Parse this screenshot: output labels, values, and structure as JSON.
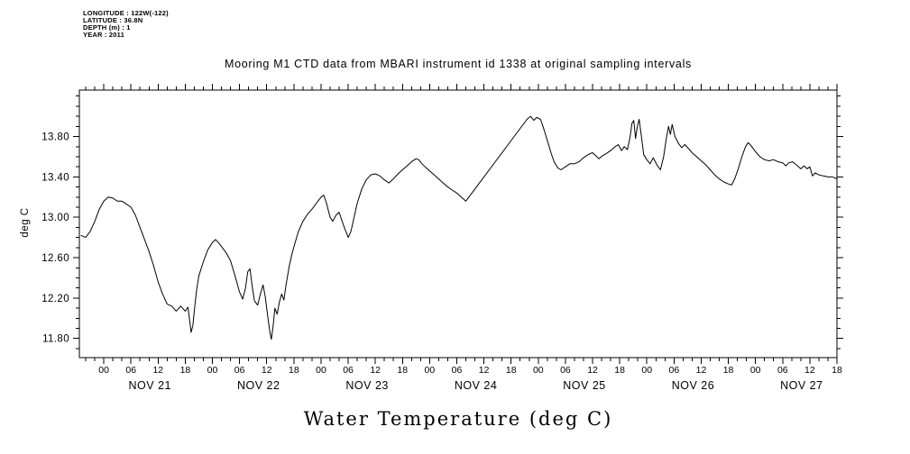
{
  "meta": {
    "lines": [
      "LONGITUDE : 122W(-122)",
      "LATITUDE : 36.8N",
      "DEPTH (m) : 1",
      "YEAR : 2011"
    ]
  },
  "title": "Mooring M1 CTD data from MBARI instrument id 1338 at original sampling intervals",
  "bottom_title": "Water Temperature (deg C)",
  "chart_data": {
    "type": "line",
    "title": "Mooring M1 CTD data from MBARI instrument id 1338 at original sampling intervals",
    "xlabel": "Water Temperature (deg C)",
    "ylabel": "deg C",
    "line_color": "#000000",
    "background": "#ffffff",
    "grid": false,
    "legend": false,
    "ylim": [
      11.61,
      14.26
    ],
    "ytick_values": [
      11.8,
      12.2,
      12.6,
      13.0,
      13.4,
      13.8
    ],
    "ytick_labels": [
      "11.80",
      "12.20",
      "12.60",
      "13.00",
      "13.40",
      "13.80"
    ],
    "y_minor_step": 0.1,
    "x_unit": "hours since 2011-11-20 18:00",
    "xlim": [
      0.6,
      168
    ],
    "x_major_step_hours": 6,
    "x_minor_step_hours": 2,
    "hour_labels_cycle": [
      "00",
      "06",
      "12",
      "18"
    ],
    "day_labels": [
      "NOV 21",
      "NOV 22",
      "NOV 23",
      "NOV 24",
      "NOV 25",
      "NOV 26",
      "NOV 27"
    ],
    "series": [
      {
        "name": "water_temperature",
        "units": "deg C",
        "points": [
          [
            1,
            12.82
          ],
          [
            2,
            12.8
          ],
          [
            3,
            12.86
          ],
          [
            4,
            12.96
          ],
          [
            5,
            13.08
          ],
          [
            6,
            13.16
          ],
          [
            7,
            13.2
          ],
          [
            8,
            13.19
          ],
          [
            9,
            13.16
          ],
          [
            10,
            13.16
          ],
          [
            11,
            13.13
          ],
          [
            12,
            13.1
          ],
          [
            13,
            13.02
          ],
          [
            14,
            12.9
          ],
          [
            15,
            12.78
          ],
          [
            16,
            12.66
          ],
          [
            17,
            12.52
          ],
          [
            18,
            12.36
          ],
          [
            19,
            12.24
          ],
          [
            20,
            12.14
          ],
          [
            21,
            12.12
          ],
          [
            22,
            12.07
          ],
          [
            23,
            12.12
          ],
          [
            24,
            12.07
          ],
          [
            24.6,
            12.11
          ],
          [
            25,
            11.97
          ],
          [
            25.3,
            11.86
          ],
          [
            25.7,
            11.93
          ],
          [
            26,
            12.08
          ],
          [
            26.5,
            12.28
          ],
          [
            27,
            12.42
          ],
          [
            28,
            12.56
          ],
          [
            29,
            12.68
          ],
          [
            30,
            12.75
          ],
          [
            30.7,
            12.78
          ],
          [
            31.5,
            12.74
          ],
          [
            32,
            12.71
          ],
          [
            33,
            12.65
          ],
          [
            34,
            12.57
          ],
          [
            35,
            12.42
          ],
          [
            36,
            12.26
          ],
          [
            36.7,
            12.19
          ],
          [
            37.3,
            12.3
          ],
          [
            37.8,
            12.46
          ],
          [
            38.3,
            12.49
          ],
          [
            38.8,
            12.31
          ],
          [
            39.3,
            12.17
          ],
          [
            40,
            12.13
          ],
          [
            40.6,
            12.24
          ],
          [
            41.2,
            12.33
          ],
          [
            41.7,
            12.21
          ],
          [
            42.2,
            12.03
          ],
          [
            42.7,
            11.86
          ],
          [
            43,
            11.79
          ],
          [
            43.4,
            11.92
          ],
          [
            43.8,
            12.1
          ],
          [
            44.3,
            12.04
          ],
          [
            44.8,
            12.16
          ],
          [
            45.3,
            12.24
          ],
          [
            45.8,
            12.18
          ],
          [
            46.3,
            12.34
          ],
          [
            47,
            12.52
          ],
          [
            47.6,
            12.64
          ],
          [
            48.2,
            12.74
          ],
          [
            49,
            12.86
          ],
          [
            50,
            12.96
          ],
          [
            51,
            13.03
          ],
          [
            52,
            13.08
          ],
          [
            53,
            13.14
          ],
          [
            54,
            13.2
          ],
          [
            54.6,
            13.22
          ],
          [
            55.2,
            13.14
          ],
          [
            56,
            13.0
          ],
          [
            56.6,
            12.96
          ],
          [
            57.3,
            13.02
          ],
          [
            58,
            13.05
          ],
          [
            58.6,
            12.97
          ],
          [
            59.3,
            12.88
          ],
          [
            60,
            12.8
          ],
          [
            60.6,
            12.86
          ],
          [
            61.3,
            13.0
          ],
          [
            62,
            13.14
          ],
          [
            63,
            13.28
          ],
          [
            64,
            13.37
          ],
          [
            65,
            13.42
          ],
          [
            66,
            13.43
          ],
          [
            67,
            13.41
          ],
          [
            68,
            13.37
          ],
          [
            69,
            13.34
          ],
          [
            70,
            13.38
          ],
          [
            71,
            13.43
          ],
          [
            72,
            13.47
          ],
          [
            73,
            13.51
          ],
          [
            74,
            13.55
          ],
          [
            75,
            13.58
          ],
          [
            75.6,
            13.57
          ],
          [
            76.3,
            13.53
          ],
          [
            77,
            13.5
          ],
          [
            78,
            13.46
          ],
          [
            79,
            13.42
          ],
          [
            80,
            13.38
          ],
          [
            81,
            13.34
          ],
          [
            82,
            13.3
          ],
          [
            83,
            13.27
          ],
          [
            84,
            13.24
          ],
          [
            85,
            13.2
          ],
          [
            86,
            13.16
          ],
          [
            99.5,
            13.97
          ],
          [
            100.3,
            14.0
          ],
          [
            101,
            13.96
          ],
          [
            101.7,
            13.99
          ],
          [
            102.5,
            13.97
          ],
          [
            103.2,
            13.88
          ],
          [
            104,
            13.76
          ],
          [
            104.8,
            13.64
          ],
          [
            105.5,
            13.55
          ],
          [
            106.3,
            13.49
          ],
          [
            107,
            13.47
          ],
          [
            108,
            13.5
          ],
          [
            109,
            13.53
          ],
          [
            110,
            13.53
          ],
          [
            111,
            13.55
          ],
          [
            112,
            13.59
          ],
          [
            113,
            13.62
          ],
          [
            114,
            13.64
          ],
          [
            114.7,
            13.61
          ],
          [
            115.4,
            13.58
          ],
          [
            116.2,
            13.61
          ],
          [
            117,
            13.63
          ],
          [
            118,
            13.66
          ],
          [
            119,
            13.7
          ],
          [
            119.7,
            13.72
          ],
          [
            120.4,
            13.66
          ],
          [
            121,
            13.7
          ],
          [
            121.7,
            13.67
          ],
          [
            122.3,
            13.8
          ],
          [
            122.7,
            13.93
          ],
          [
            123.1,
            13.96
          ],
          [
            123.5,
            13.78
          ],
          [
            123.9,
            13.9
          ],
          [
            124.3,
            13.97
          ],
          [
            124.8,
            13.8
          ],
          [
            125.3,
            13.62
          ],
          [
            126,
            13.57
          ],
          [
            126.7,
            13.53
          ],
          [
            127.4,
            13.59
          ],
          [
            128.2,
            13.52
          ],
          [
            129,
            13.47
          ],
          [
            129.7,
            13.6
          ],
          [
            130.3,
            13.78
          ],
          [
            130.8,
            13.9
          ],
          [
            131.2,
            13.82
          ],
          [
            131.6,
            13.92
          ],
          [
            132.2,
            13.8
          ],
          [
            133,
            13.73
          ],
          [
            133.7,
            13.69
          ],
          [
            134.4,
            13.72
          ],
          [
            135.2,
            13.68
          ],
          [
            136,
            13.64
          ],
          [
            137,
            13.6
          ],
          [
            138,
            13.56
          ],
          [
            139,
            13.52
          ],
          [
            140,
            13.47
          ],
          [
            141,
            13.42
          ],
          [
            142,
            13.38
          ],
          [
            143,
            13.35
          ],
          [
            144,
            13.33
          ],
          [
            144.7,
            13.32
          ],
          [
            145.4,
            13.38
          ],
          [
            146.2,
            13.48
          ],
          [
            147,
            13.6
          ],
          [
            147.8,
            13.7
          ],
          [
            148.4,
            13.74
          ],
          [
            149,
            13.71
          ],
          [
            150,
            13.65
          ],
          [
            151,
            13.6
          ],
          [
            152,
            13.57
          ],
          [
            153,
            13.56
          ],
          [
            154,
            13.57
          ],
          [
            155,
            13.55
          ],
          [
            156,
            13.54
          ],
          [
            156.7,
            13.51
          ],
          [
            157.4,
            13.54
          ],
          [
            158.2,
            13.55
          ],
          [
            159,
            13.52
          ],
          [
            160,
            13.48
          ],
          [
            160.7,
            13.51
          ],
          [
            161.4,
            13.48
          ],
          [
            162,
            13.5
          ],
          [
            162.6,
            13.41
          ],
          [
            163.2,
            13.44
          ],
          [
            164,
            13.42
          ],
          [
            165,
            13.41
          ],
          [
            166,
            13.4
          ],
          [
            167,
            13.4
          ],
          [
            168,
            13.38
          ]
        ]
      }
    ]
  }
}
